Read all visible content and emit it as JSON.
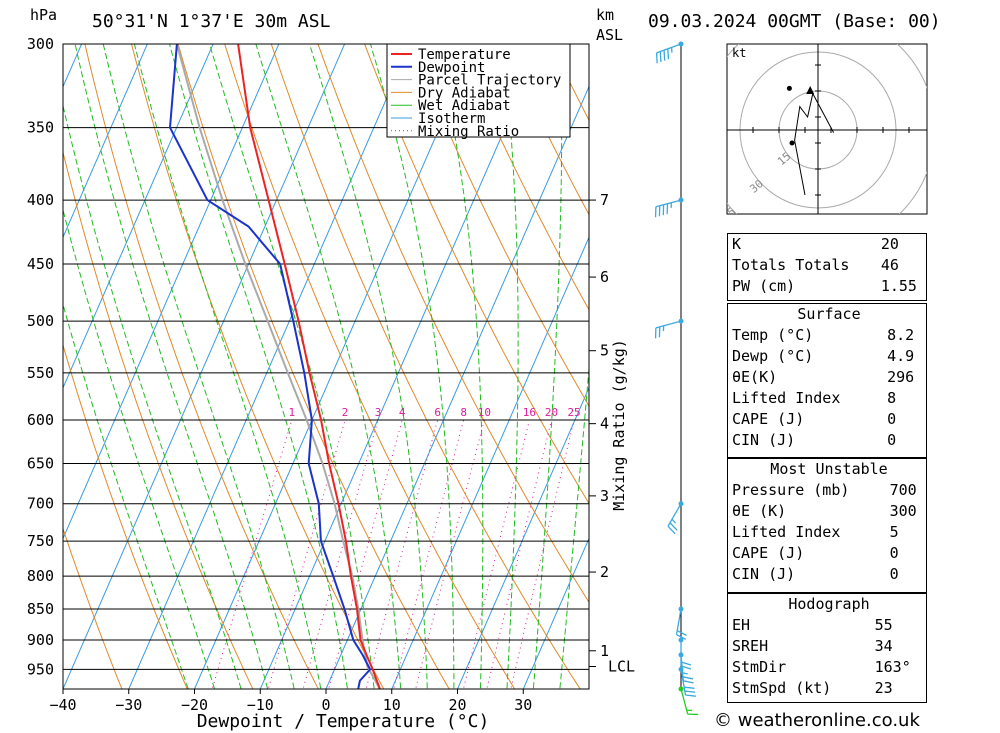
{
  "header": {
    "location": "50°31'N  1°37'E  30m  ASL",
    "datetime": "09.03.2024  00GMT  (Base: 00)",
    "pressure_unit": "hPa",
    "height_unit_line1": "km",
    "height_unit_line2": "ASL"
  },
  "colors": {
    "temperature": "#ee2222",
    "dewpoint": "#1a33cc",
    "parcel": "#aaaaaa",
    "dry_adiabat": "#e08a2a",
    "wet_adiabat": "#22bb22",
    "isotherm": "#3a9be0",
    "mixing_ratio": "#dd1a99",
    "wind": "#3aa9e0",
    "wind_surface": "#22cc22"
  },
  "chart_data": {
    "type": "skew-t",
    "title": "50°31'N 1°37'E 30m ASL",
    "xlabel": "Dewpoint / Temperature (°C)",
    "ylabel": "hPa",
    "right_ylabel": "Mixing Ratio (g/kg)",
    "xlim": [
      -40,
      40
    ],
    "ylim": [
      985,
      300
    ],
    "x_ticks": [
      "−40",
      "−30",
      "−20",
      "−10",
      "0",
      "10",
      "20",
      "30"
    ],
    "x_tick_values": [
      -40,
      -30,
      -20,
      -10,
      0,
      10,
      20,
      30
    ],
    "pressure_levels": [
      300,
      350,
      400,
      450,
      500,
      550,
      600,
      650,
      700,
      750,
      800,
      850,
      900,
      950
    ],
    "height_ticks": [
      {
        "km": "1",
        "p": 918
      },
      {
        "km": "2",
        "p": 794
      },
      {
        "km": "3",
        "p": 690
      },
      {
        "km": "4",
        "p": 604
      },
      {
        "km": "5",
        "p": 528
      },
      {
        "km": "6",
        "p": 461
      },
      {
        "km": "7",
        "p": 400
      }
    ],
    "lcl": {
      "label": "LCL",
      "p": 945
    },
    "mixing_ratio_labels": [
      "1",
      "2",
      "3",
      "4",
      "6",
      "8",
      "10",
      "16",
      "20",
      "25"
    ],
    "mixing_ratio_values": [
      1,
      2,
      3,
      4,
      6,
      8,
      10,
      16,
      20,
      25
    ],
    "legend": [
      "Temperature",
      "Dewpoint",
      "Parcel Trajectory",
      "Dry Adiabat",
      "Wet Adiabat",
      "Isotherm",
      "Mixing Ratio"
    ],
    "legend_position": "top-center",
    "series": [
      {
        "name": "Temperature",
        "points": [
          [
            985,
            8.2
          ],
          [
            950,
            5.8
          ],
          [
            925,
            3.9
          ],
          [
            900,
            2.0
          ],
          [
            850,
            -0.6
          ],
          [
            800,
            -3.7
          ],
          [
            750,
            -6.8
          ],
          [
            700,
            -10.4
          ],
          [
            650,
            -14.5
          ],
          [
            600,
            -18.6
          ],
          [
            550,
            -23.5
          ],
          [
            500,
            -28.6
          ],
          [
            450,
            -34.5
          ],
          [
            400,
            -41.2
          ],
          [
            350,
            -48.8
          ],
          [
            300,
            -56.2
          ]
        ]
      },
      {
        "name": "Dewpoint",
        "points": [
          [
            985,
            4.9
          ],
          [
            970,
            4.6
          ],
          [
            950,
            5.4
          ],
          [
            925,
            3.3
          ],
          [
            900,
            0.9
          ],
          [
            850,
            -2.5
          ],
          [
            800,
            -6.4
          ],
          [
            750,
            -10.6
          ],
          [
            700,
            -13.4
          ],
          [
            650,
            -17.6
          ],
          [
            600,
            -20.0
          ],
          [
            550,
            -24.3
          ],
          [
            500,
            -29.4
          ],
          [
            450,
            -35.2
          ],
          [
            420,
            -42.5
          ],
          [
            400,
            -50.5
          ],
          [
            350,
            -61.0
          ],
          [
            300,
            -65.5
          ]
        ]
      },
      {
        "name": "Parcel Trajectory",
        "points": [
          [
            985,
            8.2
          ],
          [
            945,
            4.8
          ],
          [
            900,
            2.3
          ],
          [
            850,
            -0.4
          ],
          [
            800,
            -3.5
          ],
          [
            750,
            -7.2
          ],
          [
            700,
            -11.0
          ],
          [
            650,
            -15.5
          ],
          [
            600,
            -20.8
          ],
          [
            550,
            -26.8
          ],
          [
            500,
            -33.3
          ],
          [
            450,
            -40.5
          ],
          [
            400,
            -48.2
          ],
          [
            350,
            -56.5
          ],
          [
            300,
            -65.5
          ]
        ]
      }
    ],
    "wind_profile": [
      {
        "p": 300,
        "dir": 250,
        "kt": 45
      },
      {
        "p": 400,
        "dir": 255,
        "kt": 45
      },
      {
        "p": 500,
        "dir": 255,
        "kt": 25
      },
      {
        "p": 700,
        "dir": 210,
        "kt": 25
      },
      {
        "p": 850,
        "dir": 190,
        "kt": 20
      },
      {
        "p": 900,
        "dir": 180,
        "kt": 20
      },
      {
        "p": 925,
        "dir": 175,
        "kt": 25
      },
      {
        "p": 950,
        "dir": 170,
        "kt": 30
      },
      {
        "p": 985,
        "dir": 165,
        "kt": 15
      }
    ],
    "hodograph": {
      "unit_label": "kt",
      "ring_labels": [
        "15",
        "30",
        "45"
      ],
      "ring_values": [
        15,
        30,
        45
      ],
      "points": [
        [
          -5,
          -25
        ],
        [
          -9,
          -4
        ],
        [
          -7,
          9
        ],
        [
          -4,
          5
        ],
        [
          -2,
          14
        ],
        [
          6,
          -1
        ]
      ],
      "storm_motion": {
        "dir": 163,
        "kt": 23
      }
    }
  },
  "indices": {
    "basic": [
      {
        "label": "K",
        "value": "20"
      },
      {
        "label": "Totals Totals",
        "value": "46"
      },
      {
        "label": "PW (cm)",
        "value": "1.55"
      }
    ],
    "surface": {
      "title": "Surface",
      "rows": [
        {
          "label": "Temp (°C)",
          "value": "8.2"
        },
        {
          "label": "Dewp (°C)",
          "value": "4.9"
        },
        {
          "label": "θE(K)",
          "value": "296"
        },
        {
          "label": "Lifted Index",
          "value": "8"
        },
        {
          "label": "CAPE (J)",
          "value": "0"
        },
        {
          "label": "CIN (J)",
          "value": "0"
        }
      ]
    },
    "most_unstable": {
      "title": "Most Unstable",
      "rows": [
        {
          "label": "Pressure (mb)",
          "value": "700"
        },
        {
          "label": "θE (K)",
          "value": "300"
        },
        {
          "label": "Lifted Index",
          "value": "5"
        },
        {
          "label": "CAPE (J)",
          "value": "0"
        },
        {
          "label": "CIN (J)",
          "value": "0"
        }
      ]
    },
    "hodograph": {
      "title": "Hodograph",
      "rows": [
        {
          "label": "EH",
          "value": "55"
        },
        {
          "label": "SREH",
          "value": "34"
        },
        {
          "label": "StmDir",
          "value": "163°"
        },
        {
          "label": "StmSpd (kt)",
          "value": "23"
        }
      ]
    }
  },
  "footer": {
    "copyright": "© weatheronline.co.uk"
  }
}
